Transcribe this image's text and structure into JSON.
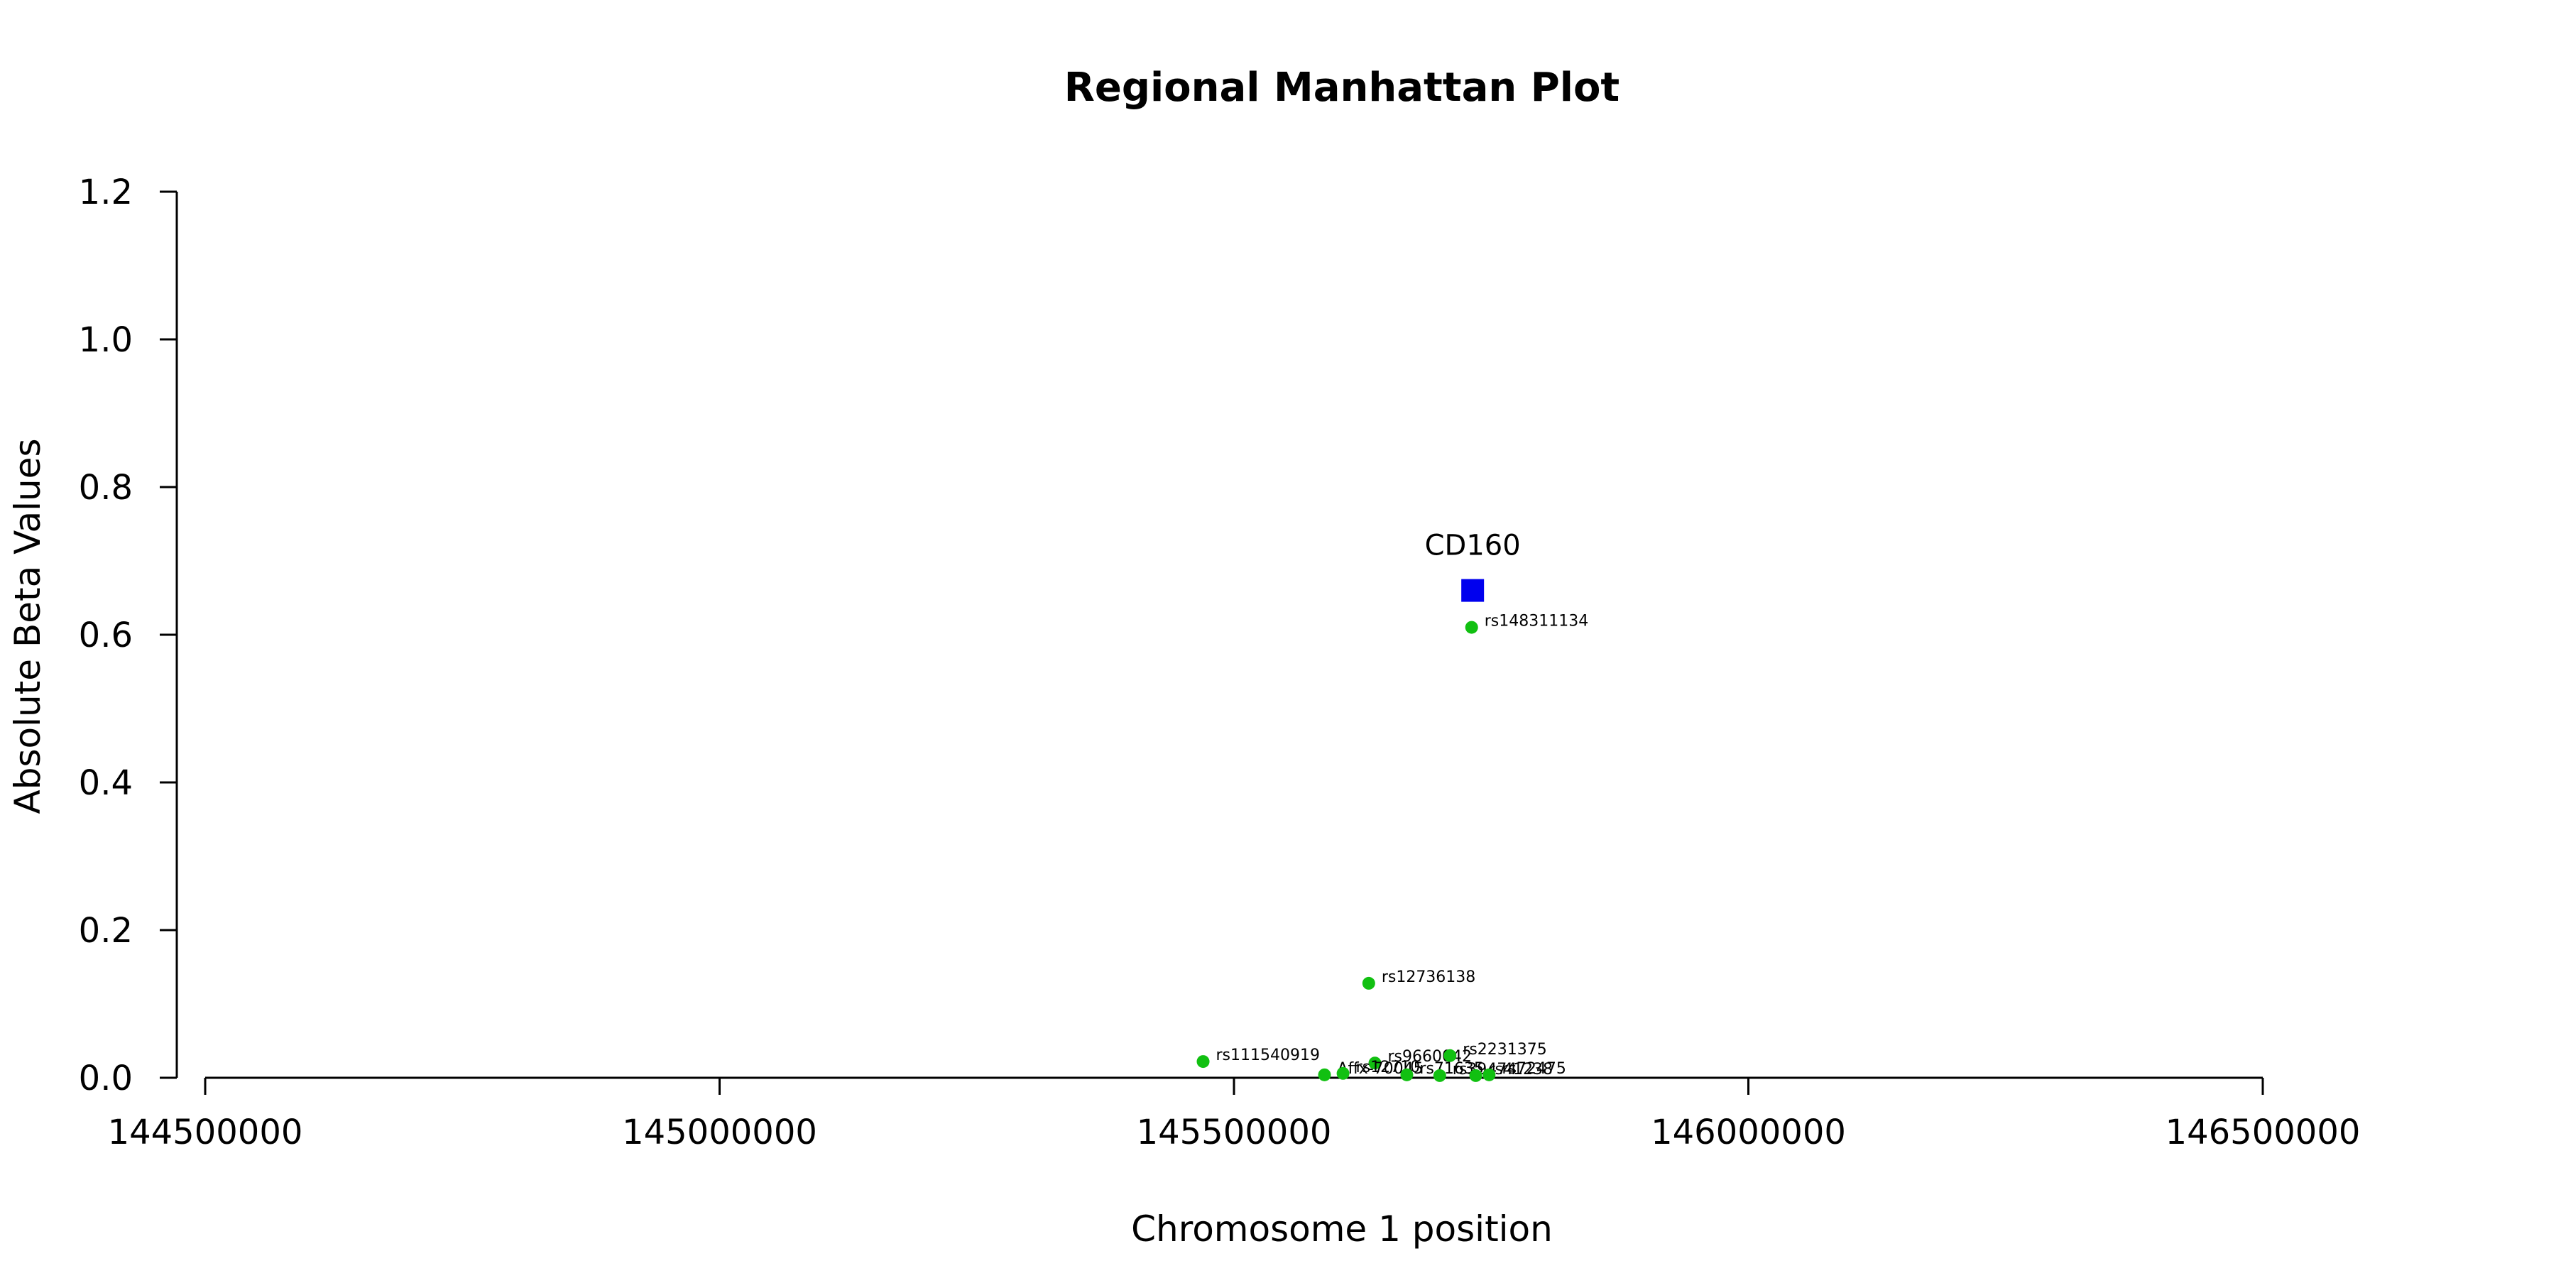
{
  "chart_data": {
    "type": "scatter",
    "title": "Regional Manhattan Plot",
    "xlabel": "Chromosome 1 position",
    "ylabel": "Absolute Beta Values",
    "xlim": [
      144500000,
      146500000
    ],
    "ylim": [
      0,
      1.2
    ],
    "x_ticks": [
      144500000,
      145000000,
      145500000,
      146000000,
      146500000
    ],
    "x_tick_labels": [
      "144500000",
      "145000000",
      "145500000",
      "146000000",
      "146500000"
    ],
    "y_ticks": [
      0.0,
      0.2,
      0.4,
      0.6,
      0.8,
      1.0,
      1.2
    ],
    "y_tick_labels": [
      "0.0",
      "0.2",
      "0.4",
      "0.6",
      "0.8",
      "1.0",
      "1.2"
    ],
    "grid": false,
    "colors": {
      "snp": "#11c011",
      "gene": "#0000ee"
    },
    "gene": {
      "name": "CD160",
      "x": 145732000,
      "y": 0.66,
      "shape": "square"
    },
    "points": [
      {
        "label": "rs148311134",
        "x": 145731000,
        "y": 0.61
      },
      {
        "label": "rs12736138",
        "x": 145631000,
        "y": 0.128
      },
      {
        "label": "rs111540919",
        "x": 145470000,
        "y": 0.022
      },
      {
        "label": "rs9660042",
        "x": 145637000,
        "y": 0.02
      },
      {
        "label": "rs2231375",
        "x": 145710000,
        "y": 0.03
      },
      {
        "label": "Affx-70045",
        "x": 145588000,
        "y": 0.004
      },
      {
        "label": "rs12710",
        "x": 145606000,
        "y": 0.006
      },
      {
        "label": "rs71635",
        "x": 145668000,
        "y": 0.004
      },
      {
        "label": "rs39474",
        "x": 145700000,
        "y": 0.003
      },
      {
        "label": "rs41238",
        "x": 145735000,
        "y": 0.003
      },
      {
        "label": "rs72475",
        "x": 145748000,
        "y": 0.004
      }
    ]
  }
}
